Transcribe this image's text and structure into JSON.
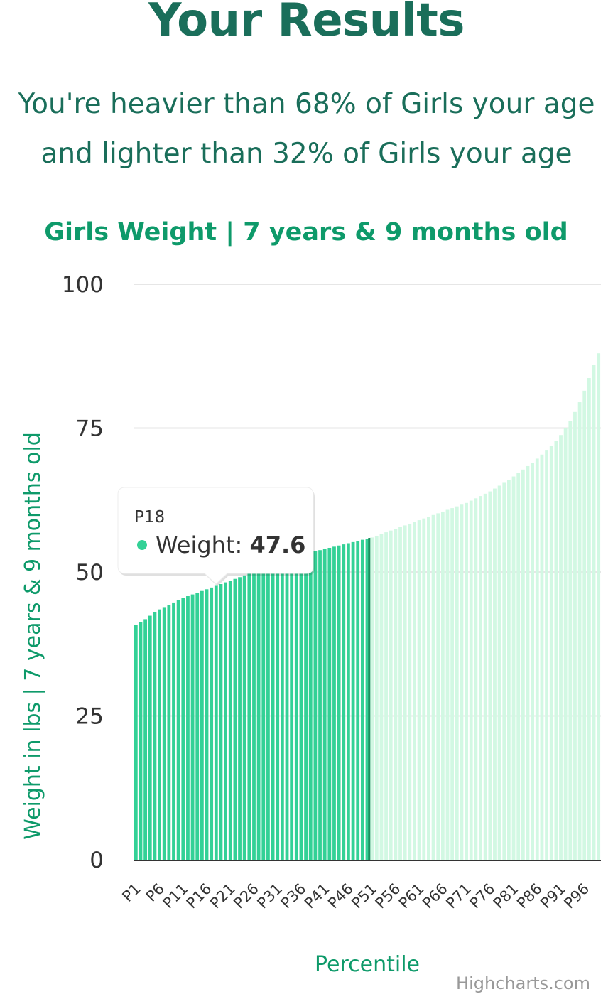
{
  "header": {
    "title": "Your Results",
    "summary_line1": "You're heavier than 68% of Girls your age",
    "summary_line2": "and lighter than 32% of Girls your age"
  },
  "tooltip": {
    "category": "P18",
    "series_label": "Weight: ",
    "value": "47.6",
    "point_index": 17
  },
  "credit": "Highcharts.com",
  "colors": {
    "highlight": "#33d196",
    "faded": "#d2f8e3",
    "divider": "#1e8d5f",
    "grid": "#e6e6e6",
    "axis": "#333333",
    "title": "#0e9a6a"
  },
  "chart_data": {
    "type": "bar",
    "title": "Girls Weight | 7 years & 9 months old",
    "xlabel": "Percentile",
    "ylabel": "Weight in lbs | 7 years & 9 months old",
    "ylim": [
      0,
      100
    ],
    "yticks": [
      0,
      25,
      50,
      75,
      100
    ],
    "grid": true,
    "legend": "none",
    "highlighted_through": "P50",
    "tick_labels": [
      "P1",
      "P6",
      "P11",
      "P16",
      "P21",
      "P26",
      "P31",
      "P36",
      "P41",
      "P46",
      "P51",
      "P56",
      "P61",
      "P66",
      "P71",
      "P76",
      "P81",
      "P86",
      "P91",
      "P96"
    ],
    "categories": [
      "P1",
      "P2",
      "P3",
      "P4",
      "P5",
      "P6",
      "P7",
      "P8",
      "P9",
      "P10",
      "P11",
      "P12",
      "P13",
      "P14",
      "P15",
      "P16",
      "P17",
      "P18",
      "P19",
      "P20",
      "P21",
      "P22",
      "P23",
      "P24",
      "P25",
      "P26",
      "P27",
      "P28",
      "P29",
      "P30",
      "P31",
      "P32",
      "P33",
      "P34",
      "P35",
      "P36",
      "P37",
      "P38",
      "P39",
      "P40",
      "P41",
      "P42",
      "P43",
      "P44",
      "P45",
      "P46",
      "P47",
      "P48",
      "P49",
      "P50",
      "P51",
      "P52",
      "P53",
      "P54",
      "P55",
      "P56",
      "P57",
      "P58",
      "P59",
      "P60",
      "P61",
      "P62",
      "P63",
      "P64",
      "P65",
      "P66",
      "P67",
      "P68",
      "P69",
      "P70",
      "P71",
      "P72",
      "P73",
      "P74",
      "P75",
      "P76",
      "P77",
      "P78",
      "P79",
      "P80",
      "P81",
      "P82",
      "P83",
      "P84",
      "P85",
      "P86",
      "P87",
      "P88",
      "P89",
      "P90",
      "P91",
      "P92",
      "P93",
      "P94",
      "P95",
      "P96",
      "P97",
      "P98",
      "P99"
    ],
    "series": [
      {
        "name": "Weight",
        "values": [
          40.8,
          41.3,
          41.8,
          42.4,
          43.0,
          43.5,
          43.9,
          44.3,
          44.7,
          45.1,
          45.5,
          45.8,
          46.1,
          46.4,
          46.7,
          47.0,
          47.3,
          47.6,
          47.9,
          48.2,
          48.5,
          48.8,
          49.1,
          49.4,
          49.7,
          50.0,
          50.3,
          50.6,
          50.9,
          51.2,
          51.5,
          51.8,
          52.1,
          52.4,
          52.7,
          53.0,
          53.2,
          53.4,
          53.6,
          53.8,
          54.0,
          54.2,
          54.4,
          54.6,
          54.8,
          55.0,
          55.2,
          55.4,
          55.6,
          55.8,
          56.0,
          56.3,
          56.6,
          56.9,
          57.2,
          57.5,
          57.8,
          58.1,
          58.4,
          58.7,
          59.0,
          59.3,
          59.6,
          59.9,
          60.2,
          60.5,
          60.8,
          61.1,
          61.4,
          61.7,
          62.0,
          62.4,
          62.8,
          63.2,
          63.6,
          64.0,
          64.5,
          65.0,
          65.5,
          66.0,
          66.6,
          67.2,
          67.8,
          68.4,
          69.0,
          69.7,
          70.4,
          71.1,
          71.9,
          72.8,
          73.8,
          75.0,
          76.3,
          77.8,
          79.5,
          81.5,
          83.7,
          86.0,
          88.0
        ]
      }
    ]
  }
}
